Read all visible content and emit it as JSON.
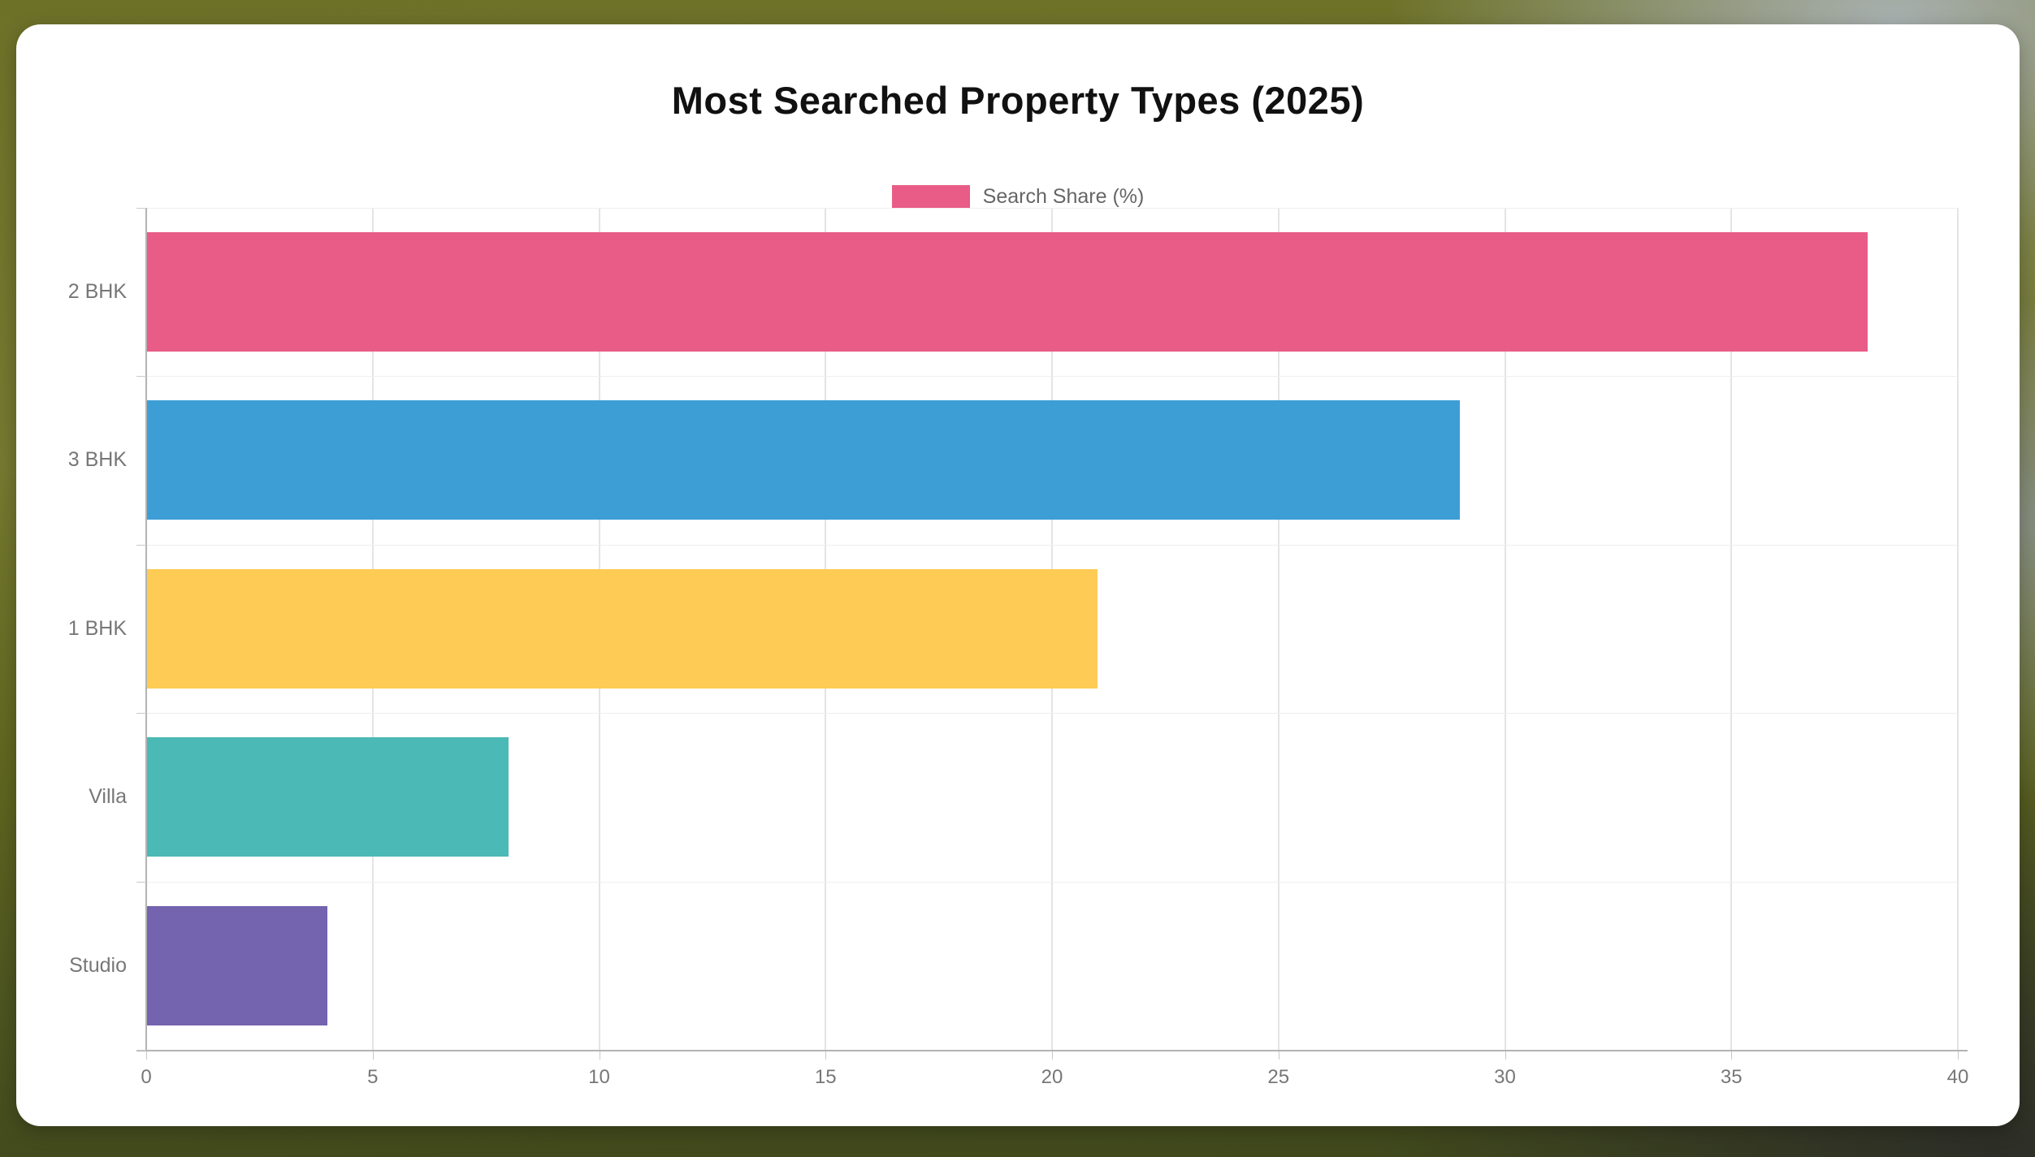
{
  "page": {
    "card_color": "#ffffff"
  },
  "chart_data": {
    "type": "bar",
    "orientation": "horizontal",
    "title": "Most Searched Property Types (2025)",
    "legend": {
      "label": "Search Share (%)",
      "position": "top",
      "swatch_color": "#e95c87"
    },
    "series_name": "Search Share (%)",
    "categories": [
      "2 BHK",
      "3 BHK",
      "1 BHK",
      "Villa",
      "Studio"
    ],
    "values": [
      38,
      29,
      21,
      8,
      4
    ],
    "bar_colors": [
      "#e95c87",
      "#3d9ed6",
      "#fecb55",
      "#4bb9b5",
      "#7463ae"
    ],
    "xlabel": "",
    "ylabel": "",
    "xlim": [
      0,
      40
    ],
    "x_ticks": [
      0,
      5,
      10,
      15,
      20,
      25,
      30,
      35,
      40
    ],
    "grid": true,
    "colors": {
      "title_text": "#111111",
      "legend_text": "#666666",
      "axis_text": "#777777",
      "grid_vertical": "#e4e4e4",
      "grid_horizontal": "#efefef",
      "axis_line": "#b3b3b3",
      "tick_mark": "#c9c9c9"
    }
  }
}
